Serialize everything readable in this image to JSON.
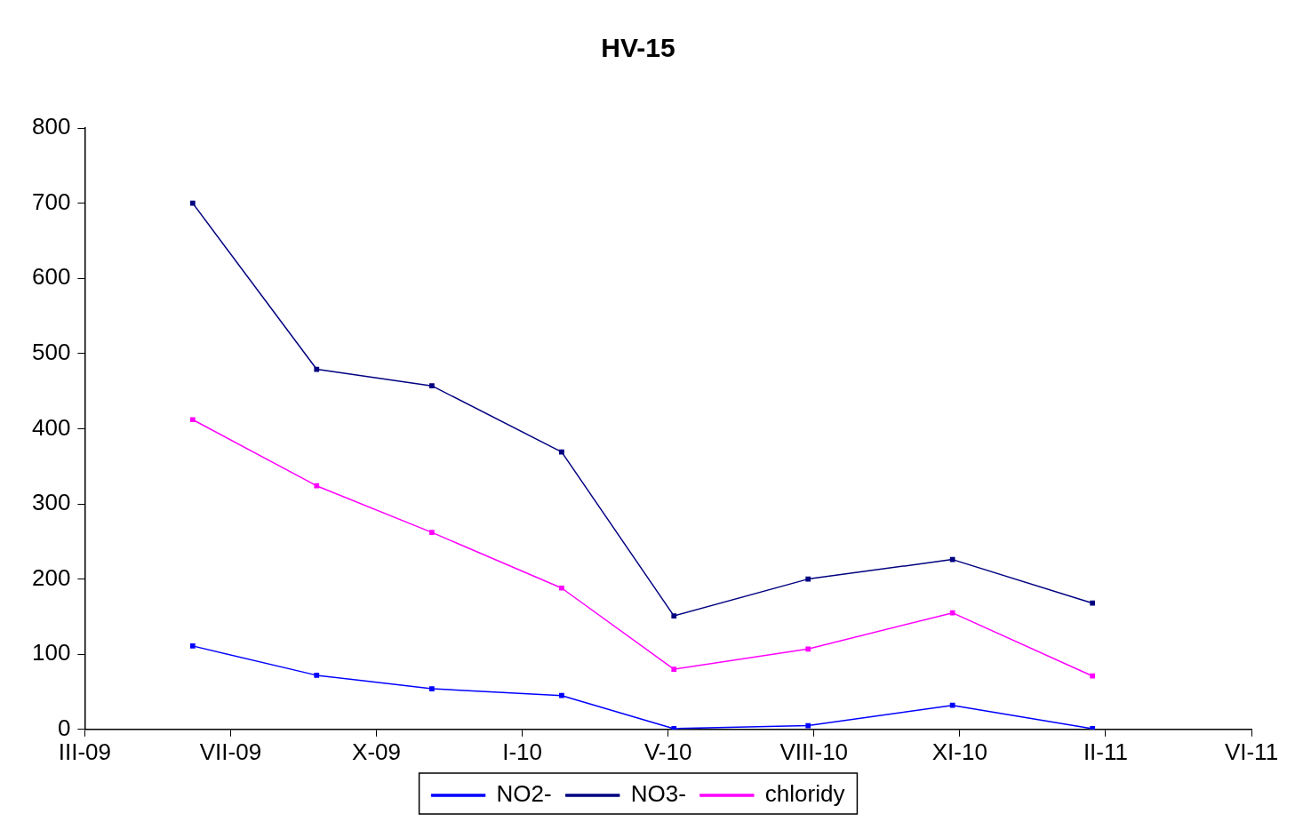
{
  "chart_data": {
    "type": "line",
    "title": "HV-15",
    "x": [
      "2009-06-10",
      "2009-09-03",
      "2009-11-21",
      "2010-02-18",
      "2010-05-06",
      "2010-08-06",
      "2010-11-13",
      "2011-02-17"
    ],
    "series": [
      {
        "name": "NO2-",
        "color": "#0000ff",
        "values": [
          111,
          72,
          54,
          45,
          1,
          5,
          32,
          1
        ]
      },
      {
        "name": "NO3-",
        "color": "#000080",
        "values": [
          700,
          479,
          457,
          369,
          151,
          200,
          226,
          168
        ]
      },
      {
        "name": "chloridy",
        "color": "#ff00ff",
        "values": [
          412,
          324,
          262,
          188,
          80,
          107,
          155,
          71
        ]
      }
    ],
    "xlim": [
      "2009-03-28",
      "2011-06-06"
    ],
    "xticks": [
      {
        "value": "2009-03-28",
        "label": "III-09"
      },
      {
        "value": "2009-07-06",
        "label": "VII-09"
      },
      {
        "value": "2009-10-14",
        "label": "X-09"
      },
      {
        "value": "2010-01-22",
        "label": "I-10"
      },
      {
        "value": "2010-05-02",
        "label": "V-10"
      },
      {
        "value": "2010-08-10",
        "label": "VIII-10"
      },
      {
        "value": "2010-11-18",
        "label": "XI-10"
      },
      {
        "value": "2011-02-26",
        "label": "II-11"
      },
      {
        "value": "2011-06-06",
        "label": "VI-11"
      }
    ],
    "ylim": [
      0,
      800
    ],
    "yticks": [
      0,
      100,
      200,
      300,
      400,
      500,
      600,
      700,
      800
    ],
    "grid": false,
    "legend": "bottom",
    "marker": "square",
    "line_style": "solid"
  }
}
